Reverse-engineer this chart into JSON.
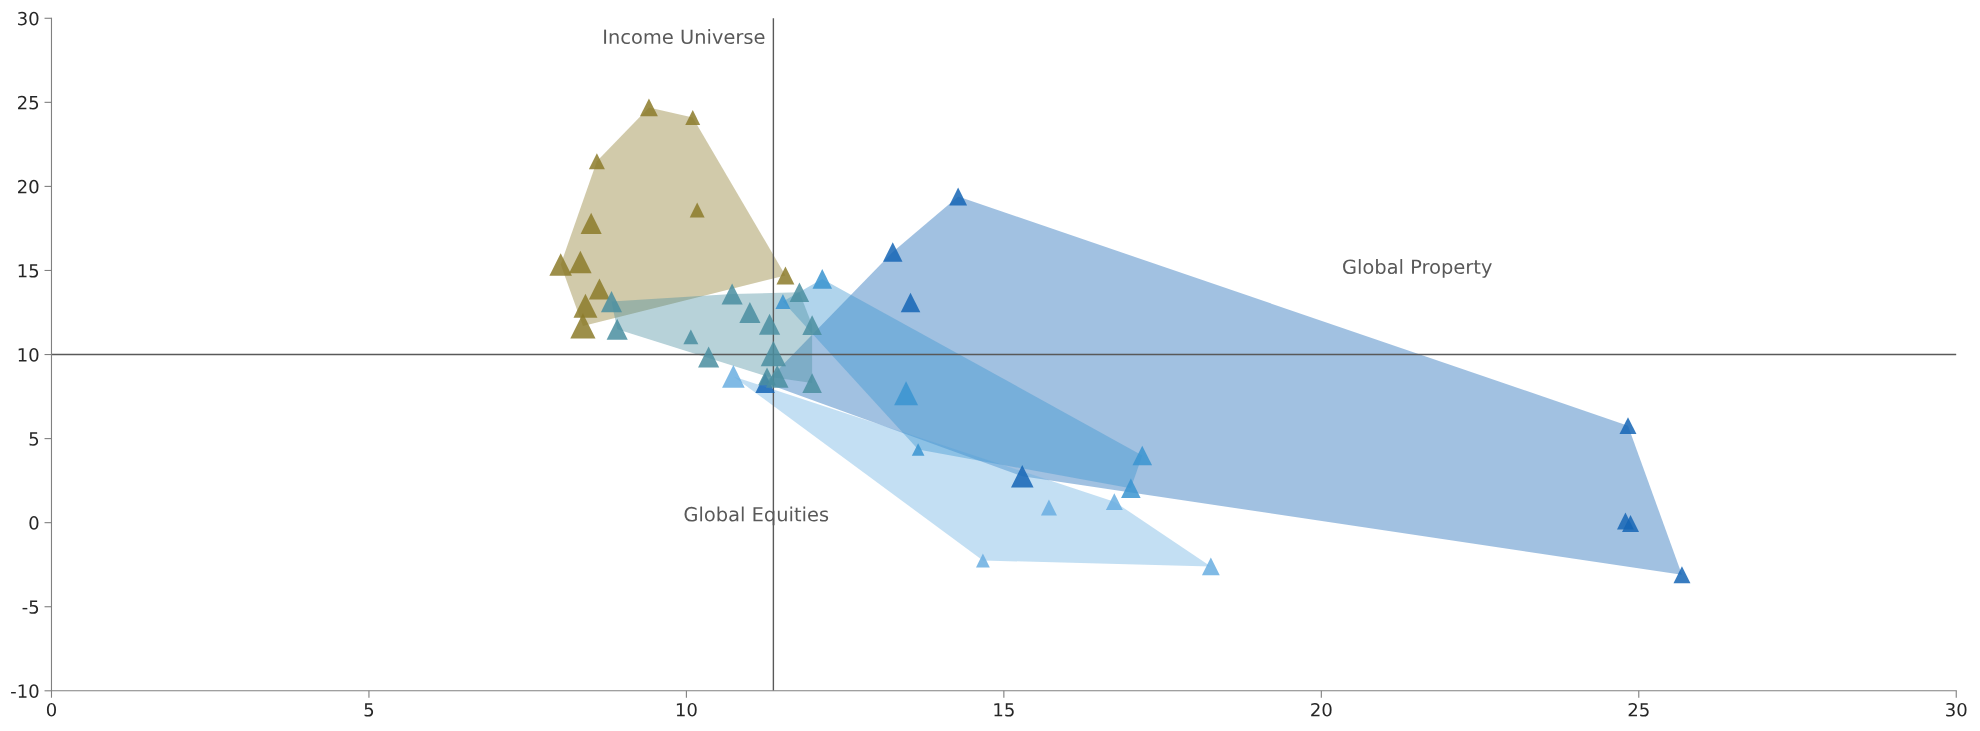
{
  "chart_data": {
    "type": "bubble",
    "marker": "triangle",
    "grid": false,
    "legend": false,
    "xlim": [
      0,
      30
    ],
    "xticks": [
      0,
      5,
      10,
      15,
      20,
      25,
      30
    ],
    "ylim": [
      -10,
      30
    ],
    "yticks": [
      -10,
      -5,
      0,
      5,
      10,
      15,
      20,
      25,
      30
    ],
    "ref_lines": [
      {
        "axis": "x",
        "value": 11.37,
        "color": "#595959"
      },
      {
        "axis": "y",
        "value": 10,
        "color": "#595959"
      }
    ],
    "annotations": [
      "Income Universe",
      "Global Property",
      "Global Equities"
    ],
    "series": [
      {
        "color": "#1565b5",
        "x": [
          11.24,
          13.25,
          13.53,
          14.28,
          15.29,
          24.83,
          24.79,
          24.87,
          25.68
        ],
        "values": [
          8.3,
          16.1,
          13.1,
          19.4,
          2.76,
          5.77,
          0.1,
          -0.05,
          -3.1
        ],
        "sizes": [
          0.6,
          0.6,
          0.6,
          0.5,
          0.8,
          0.45,
          0.45,
          0.45,
          0.45
        ]
      },
      {
        "color": "#8c7b2a",
        "x": [
          9.41,
          10.1,
          8.59,
          10.17,
          8.5,
          8.02,
          8.33,
          8.63,
          8.41,
          8.37,
          11.56
        ],
        "values": [
          24.7,
          24.1,
          21.5,
          18.6,
          17.8,
          15.35,
          15.5,
          13.9,
          12.9,
          11.7,
          14.7
        ],
        "sizes": [
          0.5,
          0.35,
          0.4,
          0.35,
          0.7,
          0.8,
          0.8,
          0.7,
          0.9,
          1.0,
          0.5
        ]
      },
      {
        "color": "#6aaee0",
        "x": [
          10.74,
          15.71,
          16.74,
          14.67,
          18.26
        ],
        "values": [
          8.7,
          0.9,
          1.25,
          -2.25,
          -2.6
        ],
        "sizes": [
          0.8,
          0.4,
          0.45,
          0.3,
          0.5
        ]
      },
      {
        "color": "#3a94d0",
        "x": [
          12.14,
          11.52,
          13.46,
          13.65,
          17.18,
          17.0
        ],
        "values": [
          14.5,
          13.15,
          7.7,
          4.35,
          4.0,
          2.05
        ],
        "sizes": [
          0.6,
          0.35,
          0.9,
          0.25,
          0.6,
          0.6
        ]
      },
      {
        "color": "#4a8ea0",
        "x": [
          8.82,
          8.91,
          10.07,
          10.72,
          11.0,
          11.31,
          11.78,
          11.98,
          11.37,
          10.35,
          11.98,
          11.27,
          11.43
        ],
        "values": [
          13.15,
          11.5,
          11.05,
          13.6,
          12.5,
          11.8,
          13.7,
          11.75,
          10.05,
          9.85,
          8.3,
          8.7,
          8.7
        ],
        "sizes": [
          0.7,
          0.7,
          0.35,
          0.7,
          0.7,
          0.7,
          0.6,
          0.6,
          1.0,
          0.7,
          0.6,
          0.5,
          0.8
        ]
      }
    ]
  }
}
